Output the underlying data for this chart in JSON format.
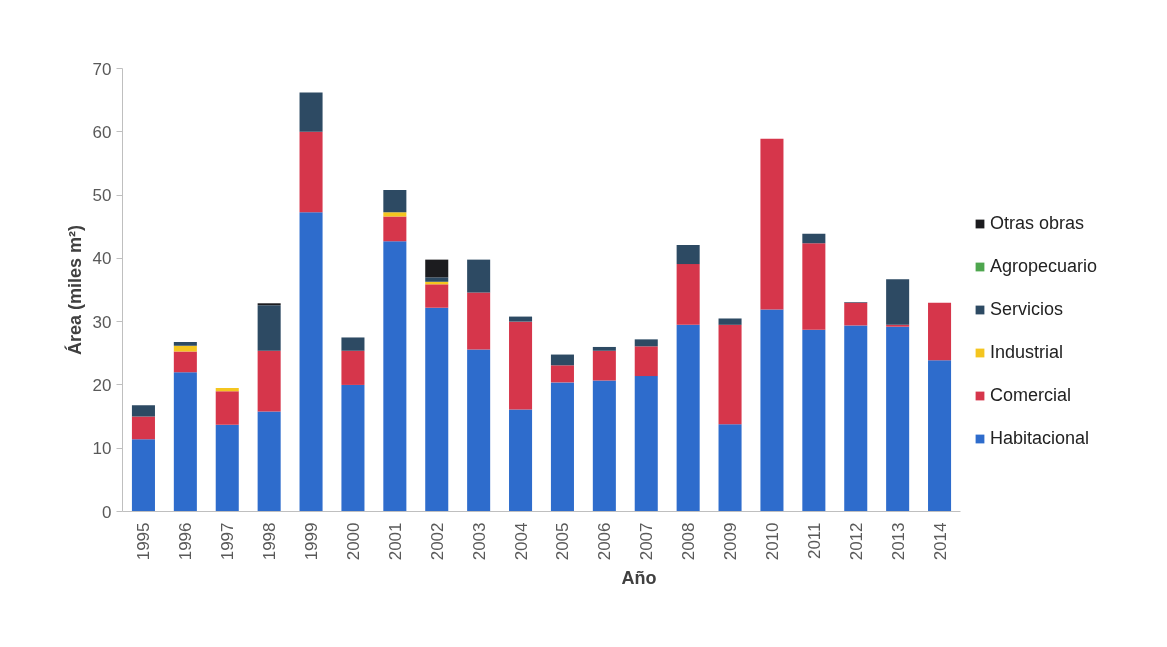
{
  "chart_data": {
    "type": "bar",
    "stacked": true,
    "xlabel": "Año",
    "ylabel": "Área (miles m²)",
    "categories": [
      "1995",
      "1996",
      "1997",
      "1998",
      "1999",
      "2000",
      "2001",
      "2002",
      "2003",
      "2004",
      "2005",
      "2006",
      "2007",
      "2008",
      "2009",
      "2010",
      "2011",
      "2012",
      "2013",
      "2014"
    ],
    "series": [
      {
        "name": "Habitacional",
        "color": "#2e6ccc",
        "values": [
          11.4,
          22.0,
          13.7,
          15.8,
          47.3,
          20.0,
          42.7,
          32.2,
          25.6,
          16.1,
          20.4,
          20.7,
          21.4,
          29.5,
          13.8,
          31.9,
          28.7,
          29.4,
          29.2,
          23.9
        ]
      },
      {
        "name": "Comercial",
        "color": "#d6364b",
        "values": [
          3.6,
          3.3,
          5.3,
          9.6,
          12.7,
          5.4,
          3.9,
          3.7,
          9.0,
          13.9,
          2.7,
          4.7,
          4.7,
          9.6,
          15.7,
          27.0,
          13.7,
          3.6,
          0.3,
          9.1
        ]
      },
      {
        "name": "Industrial",
        "color": "#f4c51f",
        "values": [
          0,
          0.9,
          0.5,
          0,
          0,
          0,
          0.7,
          0.4,
          0,
          0,
          0,
          0,
          0,
          0,
          0,
          0,
          0,
          0,
          0,
          0
        ]
      },
      {
        "name": "Servicios",
        "color": "#2d4a63",
        "values": [
          1.8,
          0.6,
          0,
          7.2,
          6.2,
          2.1,
          3.5,
          0.7,
          5.2,
          0.8,
          1.7,
          0.6,
          1.1,
          3.0,
          1.0,
          0,
          1.5,
          0.1,
          7.2,
          0
        ]
      },
      {
        "name": "Agropecuario",
        "color": "#4ea64e",
        "values": [
          0,
          0,
          0,
          0,
          0,
          0,
          0,
          0,
          0,
          0,
          0,
          0,
          0,
          0,
          0,
          0,
          0,
          0,
          0,
          0
        ]
      },
      {
        "name": "Otras obras",
        "color": "#1c1c1f",
        "values": [
          0,
          0,
          0,
          0.3,
          0,
          0,
          0,
          2.8,
          0,
          0,
          0,
          0,
          0,
          0,
          0,
          0,
          0,
          0,
          0,
          0
        ]
      }
    ],
    "ylim": [
      0,
      70
    ],
    "yticks": [
      0,
      10,
      20,
      30,
      40,
      50,
      60,
      70
    ],
    "legend": "right"
  }
}
